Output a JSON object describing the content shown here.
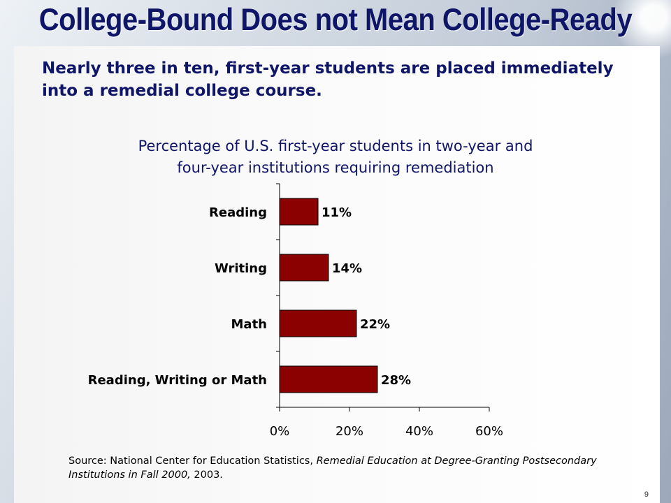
{
  "slide": {
    "title": "College-Bound Does not Mean College-Ready",
    "subtitle": "Nearly three in ten, first-year students are placed immediately into a remedial college course.",
    "chart_title_line1": "Percentage of U.S. first-year students in two-year and",
    "chart_title_line2": "four-year institutions requiring remediation",
    "source_prefix": "Source: National Center for Education Statistics, ",
    "source_title": "Remedial Education at Degree-Granting Postsecondary Institutions in Fall 2000,",
    "source_suffix": " 2003.",
    "page_number": "9"
  },
  "colors": {
    "title": "#0f1668",
    "bar": "#8b0000"
  },
  "chart_data": {
    "type": "bar",
    "orientation": "horizontal",
    "title": "Percentage of U.S. first-year students in two-year and four-year institutions requiring remediation",
    "categories": [
      "Reading",
      "Writing",
      "Math",
      "Reading, Writing or Math"
    ],
    "values": [
      11,
      14,
      22,
      28
    ],
    "value_labels": [
      "11%",
      "14%",
      "22%",
      "28%"
    ],
    "xlim": [
      0,
      60
    ],
    "x_ticks": [
      0,
      20,
      40,
      60
    ],
    "x_tick_labels": [
      "0%",
      "20%",
      "40%",
      "60%"
    ],
    "xlabel": "",
    "ylabel": "",
    "grid": false,
    "legend": "none"
  }
}
